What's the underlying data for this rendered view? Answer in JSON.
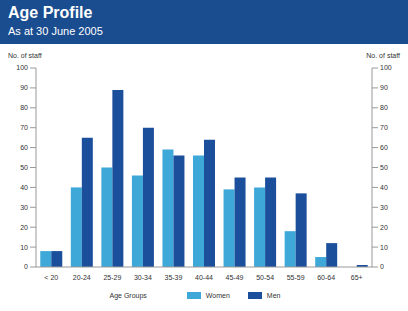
{
  "chart_data": {
    "type": "bar",
    "title": "Age Profile",
    "subtitle": "As at 30 June 2005",
    "x_label": "Age Groups",
    "y_label": "No. of staff",
    "y2_label": "No. of staff",
    "categories": [
      "< 20",
      "20-24",
      "25-29",
      "30-34",
      "35-39",
      "40-44",
      "45-49",
      "50-54",
      "55-59",
      "60-64",
      "65+"
    ],
    "series": [
      {
        "name": "Women",
        "color": "#3ea8d8",
        "values": [
          8,
          40,
          50,
          46,
          59,
          56,
          39,
          40,
          18,
          5,
          0
        ]
      },
      {
        "name": "Men",
        "color": "#1b4f9c",
        "values": [
          8,
          65,
          89,
          70,
          56,
          64,
          45,
          45,
          37,
          12,
          1
        ]
      }
    ],
    "ylim": [
      0,
      100
    ],
    "yticks": [
      0,
      10,
      20,
      30,
      40,
      50,
      60,
      70,
      80,
      90,
      100
    ],
    "y2lim": [
      0,
      100
    ],
    "y2ticks": [
      0,
      10,
      20,
      30,
      40,
      50,
      60,
      70,
      80,
      90,
      100
    ],
    "grid": false,
    "legend": "bottom"
  }
}
